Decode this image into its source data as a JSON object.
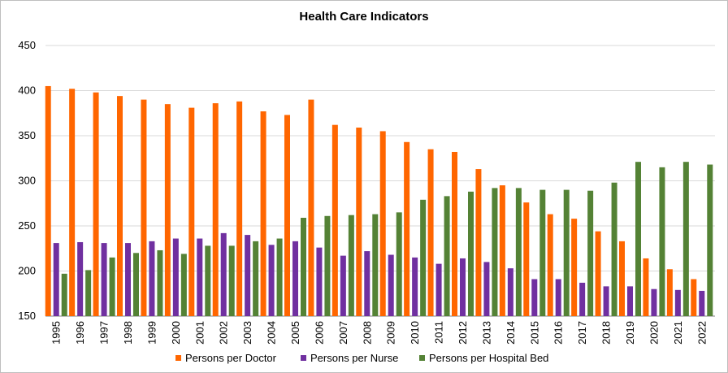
{
  "chart_data": {
    "type": "bar",
    "title": "Health Care Indicators",
    "categories": [
      "1995",
      "1996",
      "1997",
      "1998",
      "1999",
      "2000",
      "2001",
      "2002",
      "2003",
      "2004",
      "2005",
      "2006",
      "2007",
      "2008",
      "2009",
      "2010",
      "2011",
      "2012",
      "2013",
      "2014",
      "2015",
      "2016",
      "2017",
      "2018",
      "2019",
      "2020",
      "2021",
      "2022"
    ],
    "series": [
      {
        "name": "Persons per Doctor",
        "color": "#ff6600",
        "values": [
          405,
          402,
          398,
          394,
          390,
          385,
          381,
          386,
          388,
          377,
          373,
          390,
          362,
          359,
          355,
          343,
          335,
          332,
          313,
          295,
          276,
          263,
          258,
          244,
          233,
          214,
          202,
          191
        ]
      },
      {
        "name": "Persons per Nurse",
        "color": "#7030a0",
        "values": [
          231,
          232,
          231,
          231,
          233,
          236,
          236,
          242,
          240,
          229,
          233,
          226,
          217,
          222,
          218,
          215,
          208,
          214,
          210,
          203,
          191,
          191,
          187,
          183,
          183,
          180,
          179,
          178
        ]
      },
      {
        "name": "Persons per Hospital Bed",
        "color": "#548235",
        "values": [
          197,
          201,
          215,
          220,
          223,
          219,
          228,
          228,
          233,
          236,
          259,
          261,
          262,
          263,
          265,
          279,
          283,
          288,
          292,
          292,
          290,
          290,
          289,
          298,
          321,
          315,
          321,
          318
        ]
      }
    ],
    "ylim": [
      150,
      450
    ],
    "yticks": [
      150,
      200,
      250,
      300,
      350,
      400,
      450
    ],
    "grid": true,
    "legend_position": "bottom"
  }
}
